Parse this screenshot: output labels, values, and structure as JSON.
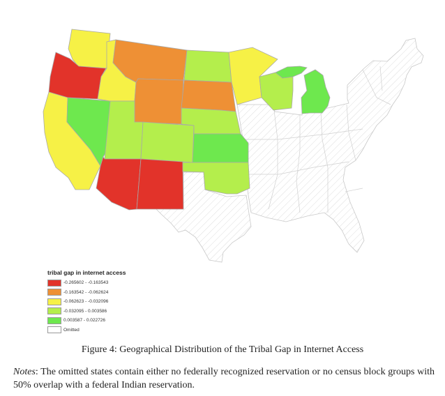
{
  "legend": {
    "title": "tribal gap in internet access",
    "items": [
      {
        "label": "-0.265602 - -0.163543",
        "color": "#e2332a"
      },
      {
        "label": "-0.163542 - -0.062624",
        "color": "#ee9035"
      },
      {
        "label": "-0.062623 - -0.032096",
        "color": "#f6f146"
      },
      {
        "label": "-0.032095 - 0.003586",
        "color": "#b4ee4c"
      },
      {
        "label": "0.003587 - 0.022726",
        "color": "#6ee84e"
      },
      {
        "label": "Omitted",
        "color": "#ffffff"
      }
    ]
  },
  "map_states": [
    {
      "state": "Washington",
      "class": 2
    },
    {
      "state": "Oregon",
      "class": 0
    },
    {
      "state": "California",
      "class": 2
    },
    {
      "state": "Nevada",
      "class": 4
    },
    {
      "state": "Idaho",
      "class": 2
    },
    {
      "state": "Montana",
      "class": 1
    },
    {
      "state": "Wyoming",
      "class": 1
    },
    {
      "state": "Utah",
      "class": 3
    },
    {
      "state": "Colorado",
      "class": 3
    },
    {
      "state": "Arizona",
      "class": 0
    },
    {
      "state": "New Mexico",
      "class": 0
    },
    {
      "state": "North Dakota",
      "class": 3
    },
    {
      "state": "South Dakota",
      "class": 1
    },
    {
      "state": "Nebraska",
      "class": 3
    },
    {
      "state": "Kansas",
      "class": 4
    },
    {
      "state": "Oklahoma",
      "class": 3
    },
    {
      "state": "Minnesota",
      "class": 2
    },
    {
      "state": "Wisconsin",
      "class": 3
    },
    {
      "state": "Michigan",
      "class": 4
    }
  ],
  "caption": "Figure 4: Geographical Distribution of the Tribal Gap in Internet Access",
  "notes": {
    "label": "Notes",
    "text": ": The omitted states contain either no federally recognized reservation or no census block groups with 50% overlap with a federal Indian reservation."
  }
}
